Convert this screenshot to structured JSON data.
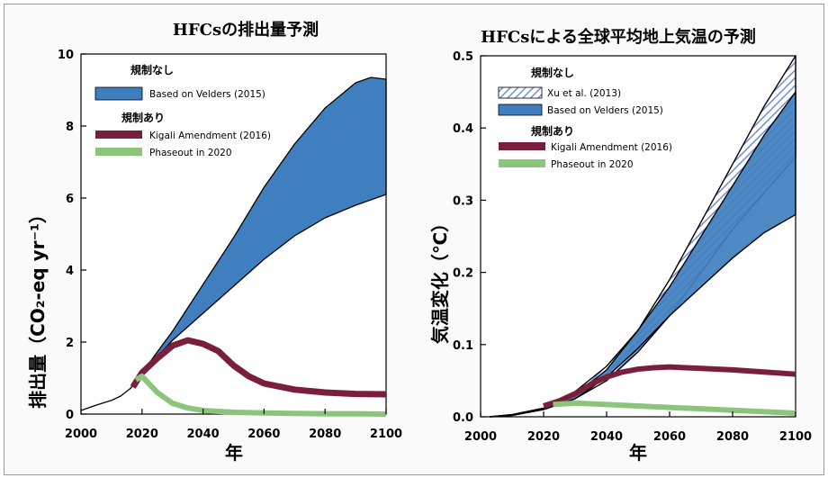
{
  "chart_data": [
    {
      "type": "area",
      "title": "HFCsの排出量予測",
      "xlabel": "年",
      "ylabel": "排出量（CO₂-eq yr⁻¹）",
      "xlim": [
        2000,
        2100
      ],
      "ylim": [
        0,
        10
      ],
      "xticks": [
        "2000",
        "2020",
        "2040",
        "2060",
        "2080",
        "2100"
      ],
      "yticks": [
        "0",
        "2",
        "4",
        "6",
        "8",
        "10"
      ],
      "legend": {
        "no_regulation_heading": "規制なし",
        "regulation_heading": "規制あり",
        "entries": [
          "Based on Velders (2015)",
          "Kigali Amendment (2016)",
          "Phaseout in 2020"
        ]
      },
      "colors": {
        "velders": "#3f7fbf",
        "kigali": "#7a1f3b",
        "phaseout": "#8cc47c"
      },
      "series": [
        {
          "name": "Based on Velders (2015)",
          "kind": "band",
          "x": [
            2020,
            2030,
            2040,
            2050,
            2060,
            2070,
            2080,
            2090,
            2095,
            2100
          ],
          "low": [
            1.15,
            2.05,
            2.8,
            3.55,
            4.3,
            4.95,
            5.45,
            5.8,
            5.95,
            6.1
          ],
          "high": [
            1.15,
            2.3,
            3.6,
            4.9,
            6.3,
            7.5,
            8.5,
            9.2,
            9.35,
            9.3
          ]
        },
        {
          "name": "historical",
          "kind": "line",
          "x": [
            2000,
            2005,
            2010,
            2013,
            2016,
            2018,
            2020
          ],
          "y": [
            0.1,
            0.25,
            0.38,
            0.5,
            0.7,
            0.88,
            1.1
          ]
        },
        {
          "name": "Kigali Amendment (2016)",
          "kind": "line",
          "x": [
            2017,
            2020,
            2025,
            2030,
            2035,
            2040,
            2045,
            2050,
            2055,
            2060,
            2070,
            2080,
            2090,
            2100
          ],
          "y": [
            0.75,
            1.15,
            1.55,
            1.9,
            2.05,
            1.95,
            1.75,
            1.35,
            1.05,
            0.85,
            0.68,
            0.6,
            0.56,
            0.55
          ]
        },
        {
          "name": "Phaseout in 2020",
          "kind": "line",
          "x": [
            2018,
            2020,
            2025,
            2030,
            2035,
            2040,
            2050,
            2060,
            2070,
            2080,
            2090,
            2100
          ],
          "y": [
            0.95,
            1.05,
            0.6,
            0.3,
            0.17,
            0.1,
            0.05,
            0.03,
            0.02,
            0.01,
            0.01,
            0.0
          ]
        }
      ]
    },
    {
      "type": "area",
      "title": "HFCsによる全球平均地上気温の予測",
      "xlabel": "年",
      "ylabel": "気温変化（℃）",
      "xlim": [
        2000,
        2100
      ],
      "ylim": [
        0,
        0.5
      ],
      "xticks": [
        "2000",
        "2020",
        "2040",
        "2060",
        "2080",
        "2100"
      ],
      "yticks": [
        "0.0",
        "0.1",
        "0.2",
        "0.3",
        "0.4",
        "0.5"
      ],
      "legend": {
        "no_regulation_heading": "規制なし",
        "regulation_heading": "規制あり",
        "entries": [
          "Xu et al. (2013)",
          "Based on Velders (2015)",
          "Kigali Amendment (2016)",
          "Phaseout in 2020"
        ]
      },
      "colors": {
        "xu": "#9fb9e0",
        "velders": "#3f7fbf",
        "kigali": "#7a1f3b",
        "phaseout": "#8cc47c"
      },
      "series": [
        {
          "name": "Xu et al. (2013)",
          "kind": "band",
          "x": [
            2003,
            2010,
            2020,
            2030,
            2040,
            2050,
            2060,
            2070,
            2080,
            2090,
            2100
          ],
          "low": [
            0.0,
            0.002,
            0.01,
            0.025,
            0.05,
            0.09,
            0.14,
            0.2,
            0.26,
            0.31,
            0.36
          ],
          "high": [
            0.0,
            0.003,
            0.012,
            0.035,
            0.07,
            0.12,
            0.19,
            0.27,
            0.35,
            0.43,
            0.5
          ]
        },
        {
          "name": "Based on Velders (2015)",
          "kind": "band",
          "x": [
            2003,
            2010,
            2020,
            2030,
            2040,
            2050,
            2060,
            2070,
            2080,
            2090,
            2100
          ],
          "low": [
            0.0,
            0.002,
            0.01,
            0.025,
            0.055,
            0.095,
            0.14,
            0.18,
            0.22,
            0.255,
            0.28
          ],
          "high": [
            0.0,
            0.003,
            0.012,
            0.03,
            0.065,
            0.12,
            0.18,
            0.25,
            0.32,
            0.39,
            0.45
          ]
        },
        {
          "name": "Kigali Amendment (2016)",
          "kind": "line",
          "x": [
            2020,
            2025,
            2030,
            2035,
            2040,
            2045,
            2050,
            2055,
            2060,
            2065,
            2070,
            2080,
            2090,
            2100
          ],
          "y": [
            0.015,
            0.022,
            0.032,
            0.045,
            0.055,
            0.062,
            0.066,
            0.068,
            0.069,
            0.068,
            0.067,
            0.065,
            0.062,
            0.059
          ]
        },
        {
          "name": "Phaseout in 2020",
          "kind": "line",
          "x": [
            2023,
            2030,
            2040,
            2050,
            2060,
            2070,
            2080,
            2090,
            2100
          ],
          "y": [
            0.017,
            0.019,
            0.017,
            0.015,
            0.013,
            0.011,
            0.009,
            0.007,
            0.005
          ]
        }
      ]
    }
  ]
}
